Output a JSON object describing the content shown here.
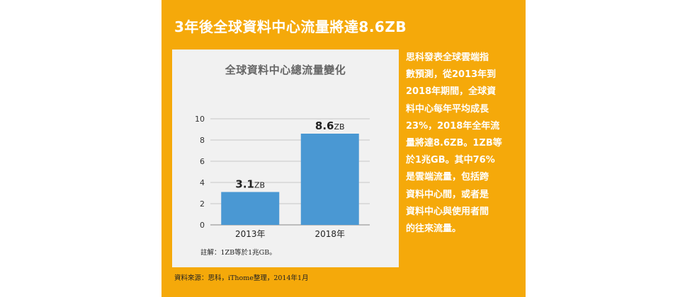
{
  "headline": "3年後全球資料中心流量將達8.6ZB",
  "colors": {
    "panel": "#f5a90a",
    "bar": "#4a98d3",
    "chart_bg": "#f1f1f1",
    "text_white": "#ffffff"
  },
  "chart_data": {
    "type": "bar",
    "title": "全球資料中心總流量變化",
    "categories": [
      "2013年",
      "2018年"
    ],
    "values": [
      3.1,
      8.6
    ],
    "data_labels": [
      {
        "value": "3.1",
        "unit": "ZB"
      },
      {
        "value": "8.6",
        "unit": "ZB"
      }
    ],
    "yticks": [
      "0",
      "2",
      "4",
      "6",
      "8",
      "10"
    ],
    "ylim": [
      0,
      10
    ],
    "grid": true,
    "legend": "none"
  },
  "note": "註解：1ZB等於1兆GB。",
  "source": "資料來源：思科，iThome整理，2014年1月",
  "body_lines": [
    "思科發表全球雲端指",
    "數預測，從2013年到",
    "2018年期間，全球資",
    "料中心每年平均成長",
    "23%，2018年全年流",
    "量將達8.6ZB。1ZB等",
    "於1兆GB。其中76%",
    "是雲端流量，包括跨",
    "資料中心間，或者是",
    "資料中心與使用者間",
    "的往來流量。"
  ]
}
